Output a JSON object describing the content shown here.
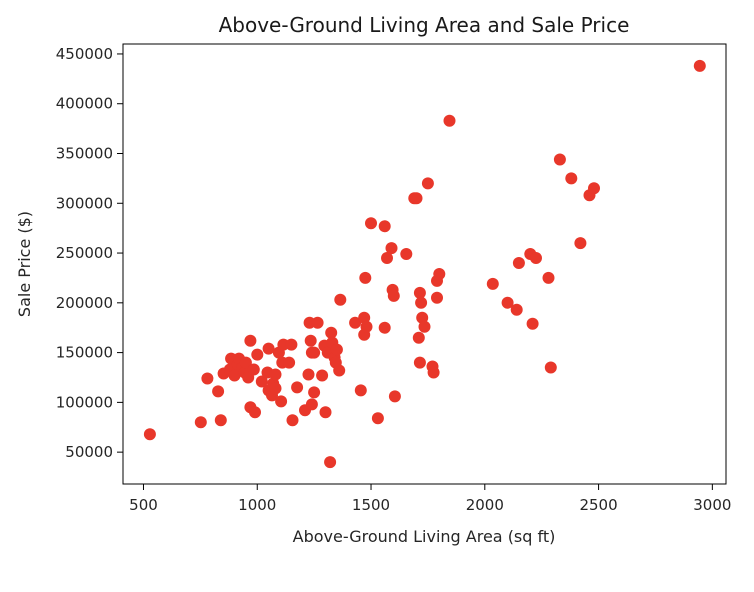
{
  "chart_data": {
    "type": "scatter",
    "title": "Above-Ground Living Area and Sale Price",
    "xlabel": "Above-Ground Living Area (sq ft)",
    "ylabel": "Sale Price ($)",
    "xlim": [
      410,
      3060
    ],
    "ylim": [
      18000,
      460000
    ],
    "xticks": [
      500,
      1000,
      1500,
      2000,
      2500,
      3000
    ],
    "yticks": [
      50000,
      100000,
      150000,
      200000,
      250000,
      300000,
      350000,
      400000,
      450000
    ],
    "grid": false,
    "marker_color": "#e8372a",
    "points": [
      [
        528,
        68000
      ],
      [
        752,
        80000
      ],
      [
        781,
        124000
      ],
      [
        828,
        111000
      ],
      [
        840,
        82000
      ],
      [
        852,
        129000
      ],
      [
        880,
        133000
      ],
      [
        885,
        144000
      ],
      [
        900,
        127000
      ],
      [
        915,
        138000
      ],
      [
        920,
        144000
      ],
      [
        935,
        135000
      ],
      [
        945,
        130000
      ],
      [
        950,
        140000
      ],
      [
        960,
        125000
      ],
      [
        970,
        162000
      ],
      [
        970,
        95000
      ],
      [
        985,
        133000
      ],
      [
        990,
        90000
      ],
      [
        1000,
        148000
      ],
      [
        1020,
        121000
      ],
      [
        1045,
        130000
      ],
      [
        1050,
        112000
      ],
      [
        1050,
        154000
      ],
      [
        1065,
        107000
      ],
      [
        1070,
        119000
      ],
      [
        1080,
        128000
      ],
      [
        1080,
        114000
      ],
      [
        1095,
        150000
      ],
      [
        1105,
        101000
      ],
      [
        1110,
        140000
      ],
      [
        1115,
        158000
      ],
      [
        1140,
        140000
      ],
      [
        1150,
        158000
      ],
      [
        1155,
        82000
      ],
      [
        1175,
        115000
      ],
      [
        1210,
        92000
      ],
      [
        1225,
        128000
      ],
      [
        1230,
        180000
      ],
      [
        1235,
        162000
      ],
      [
        1240,
        150000
      ],
      [
        1240,
        98000
      ],
      [
        1250,
        150000
      ],
      [
        1250,
        110000
      ],
      [
        1265,
        180000
      ],
      [
        1285,
        127000
      ],
      [
        1295,
        157000
      ],
      [
        1300,
        90000
      ],
      [
        1310,
        150000
      ],
      [
        1320,
        40000
      ],
      [
        1325,
        170000
      ],
      [
        1330,
        160000
      ],
      [
        1340,
        145000
      ],
      [
        1345,
        140000
      ],
      [
        1350,
        153000
      ],
      [
        1360,
        132000
      ],
      [
        1365,
        203000
      ],
      [
        1430,
        180000
      ],
      [
        1455,
        112000
      ],
      [
        1470,
        185000
      ],
      [
        1470,
        168000
      ],
      [
        1475,
        225000
      ],
      [
        1480,
        176000
      ],
      [
        1500,
        280000
      ],
      [
        1530,
        84000
      ],
      [
        1560,
        277000
      ],
      [
        1560,
        175000
      ],
      [
        1570,
        245000
      ],
      [
        1590,
        255000
      ],
      [
        1595,
        213000
      ],
      [
        1600,
        207000
      ],
      [
        1605,
        106000
      ],
      [
        1655,
        249000
      ],
      [
        1690,
        305000
      ],
      [
        1700,
        305000
      ],
      [
        1710,
        165000
      ],
      [
        1715,
        210000
      ],
      [
        1715,
        140000
      ],
      [
        1720,
        200000
      ],
      [
        1725,
        185000
      ],
      [
        1735,
        176000
      ],
      [
        1750,
        320000
      ],
      [
        1770,
        136000
      ],
      [
        1775,
        130000
      ],
      [
        1790,
        205000
      ],
      [
        1790,
        222000
      ],
      [
        1800,
        229000
      ],
      [
        1845,
        383000
      ],
      [
        2035,
        219000
      ],
      [
        2100,
        200000
      ],
      [
        2140,
        193000
      ],
      [
        2150,
        240000
      ],
      [
        2200,
        249000
      ],
      [
        2210,
        179000
      ],
      [
        2225,
        245000
      ],
      [
        2280,
        225000
      ],
      [
        2290,
        135000
      ],
      [
        2330,
        344000
      ],
      [
        2380,
        325000
      ],
      [
        2420,
        260000
      ],
      [
        2460,
        308000
      ],
      [
        2480,
        315000
      ],
      [
        2945,
        438000
      ]
    ]
  }
}
